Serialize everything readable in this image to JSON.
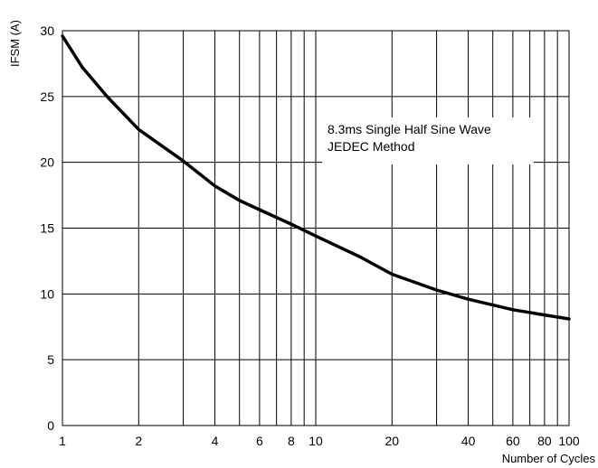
{
  "chart_data": {
    "type": "line",
    "title": "",
    "xlabel": "Number of Cycles",
    "ylabel": "IFSM (A)",
    "xscale": "log",
    "xlim": [
      1,
      100
    ],
    "ylim": [
      0,
      30
    ],
    "grid": true,
    "x_ticks": [
      1,
      2,
      4,
      6,
      8,
      10,
      20,
      40,
      60,
      80,
      100
    ],
    "x_tick_labels": [
      "1",
      "2",
      "4",
      "6",
      "8",
      "10",
      "20",
      "40",
      "60",
      "80",
      "100"
    ],
    "x_gridlines": [
      2,
      3,
      4,
      5,
      6,
      7,
      8,
      9,
      10,
      20,
      30,
      40,
      50,
      60,
      70,
      80,
      90
    ],
    "y_ticks": [
      0,
      5,
      10,
      15,
      20,
      25,
      30
    ],
    "y_tick_labels": [
      "0",
      "5",
      "10",
      "15",
      "20",
      "25",
      "30"
    ],
    "annotation": [
      "8.3ms Single Half Sine Wave",
      "JEDEC Method"
    ],
    "series": [
      {
        "color": "#000000",
        "x": [
          1,
          1.2,
          1.5,
          2,
          3,
          4,
          5,
          6,
          8,
          10,
          15,
          20,
          30,
          40,
          60,
          80,
          100
        ],
        "y": [
          29.6,
          27.2,
          25.0,
          22.5,
          20.1,
          18.2,
          17.1,
          16.4,
          15.3,
          14.4,
          12.8,
          11.5,
          10.3,
          9.6,
          8.8,
          8.4,
          8.1
        ]
      }
    ]
  }
}
